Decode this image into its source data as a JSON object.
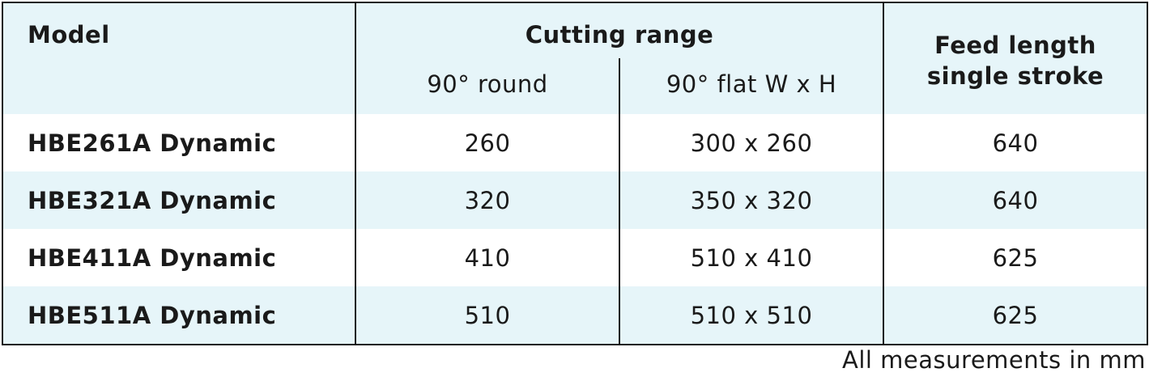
{
  "table": {
    "headers": {
      "model": "Model",
      "cutting_range": "Cutting range",
      "round": "90° round",
      "flat": "90° flat W x H",
      "feed_line1": "Feed length",
      "feed_line2": "single stroke"
    },
    "rows": [
      {
        "model": "HBE261A Dynamic",
        "round": "260",
        "flat": "300 x 260",
        "feed": "640"
      },
      {
        "model": "HBE321A Dynamic",
        "round": "320",
        "flat": "350 x 320",
        "feed": "640"
      },
      {
        "model": "HBE411A Dynamic",
        "round": "410",
        "flat": "510 x 410",
        "feed": "625"
      },
      {
        "model": "HBE511A Dynamic",
        "round": "510",
        "flat": "510 x 510",
        "feed": "625"
      }
    ]
  },
  "footnote": "All measurements in mm",
  "colors": {
    "header_bg": "#e6f5f9",
    "stripe_bg": "#e6f5f9",
    "border": "#1a1a1a"
  }
}
